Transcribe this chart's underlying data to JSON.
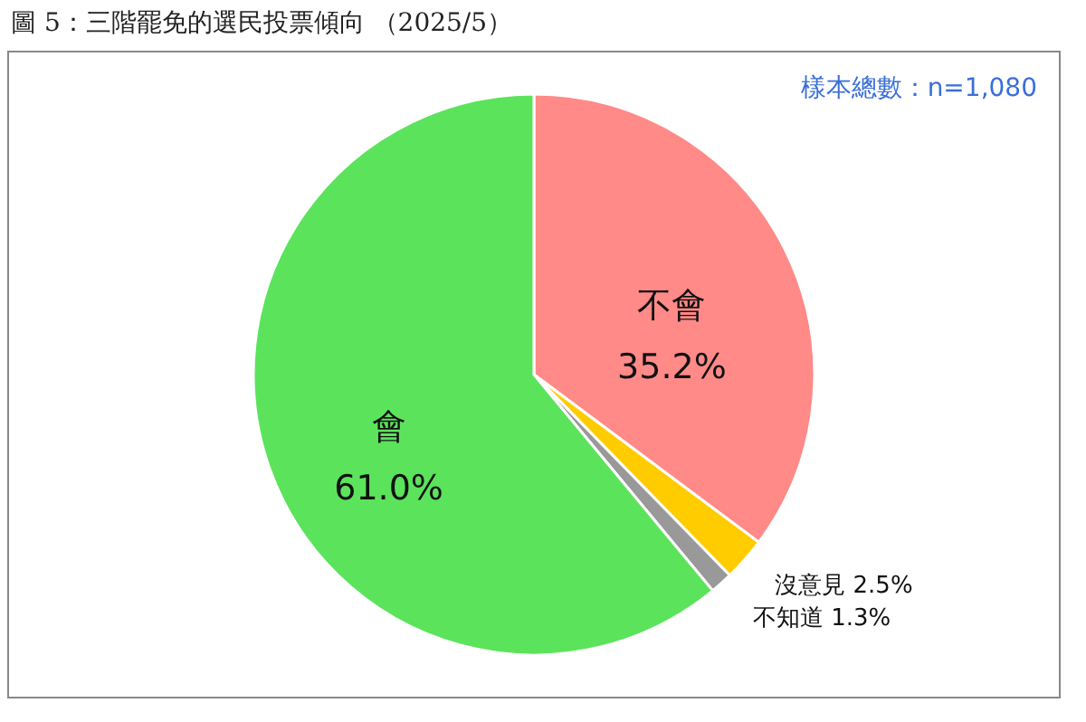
{
  "chart_data": {
    "type": "pie",
    "title": "圖 5：三階罷免的選民投票傾向 （2025/5）",
    "annotations": [
      "樣本總數：n=1,080"
    ],
    "categories": [
      "不會",
      "沒意見",
      "不知道",
      "會"
    ],
    "values": [
      35.2,
      2.5,
      1.3,
      61.0
    ],
    "value_labels": [
      "35.2%",
      "2.5%",
      "1.3%",
      "61.0%"
    ],
    "colors": [
      "#ff8a87",
      "#ffcc00",
      "#999999",
      "#5ce35c"
    ]
  }
}
